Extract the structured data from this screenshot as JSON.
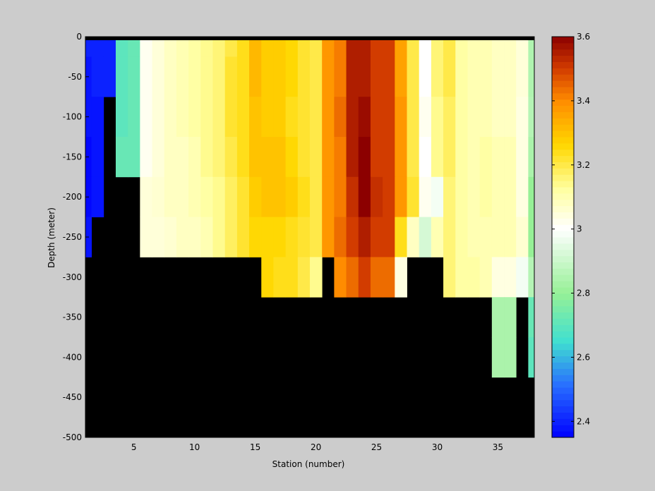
{
  "chart_data": {
    "type": "heatmap",
    "title": "",
    "xlabel": "Station (number)",
    "ylabel": "Depth (meter)",
    "xlim": [
      1,
      38
    ],
    "ylim": [
      -500,
      0
    ],
    "x_ticks": [
      5,
      10,
      15,
      20,
      25,
      30,
      35
    ],
    "y_ticks": [
      0,
      -50,
      -100,
      -150,
      -200,
      -250,
      -300,
      -350,
      -400,
      -450,
      -500
    ],
    "colorbar": {
      "range": [
        2.35,
        3.6
      ],
      "ticks": [
        2.4,
        2.6,
        2.8,
        3,
        3.2,
        3.4,
        3.6
      ],
      "tick_labels": [
        "2.4",
        "2.6",
        "2.8",
        "3",
        "3.2",
        "3.4",
        "3.6"
      ],
      "colormap": "jet-with-white-center"
    },
    "no_data_color": "#000000",
    "background_color": "#cccccc",
    "stations": [
      1,
      2,
      3,
      4,
      5,
      6,
      7,
      8,
      9,
      10,
      11,
      12,
      13,
      14,
      15,
      16,
      17,
      18,
      19,
      20,
      21,
      22,
      23,
      24,
      25,
      26,
      27,
      28,
      29,
      30,
      31,
      32,
      33,
      34,
      35,
      36,
      37,
      38
    ],
    "depths": [
      -5,
      -50,
      -100,
      -150,
      -200,
      -250,
      -300,
      -350,
      -400,
      -450,
      -500
    ],
    "values": [
      [
        2.4,
        2.4,
        2.4,
        2.7,
        2.72,
        3.02,
        3.05,
        3.08,
        3.1,
        3.12,
        3.14,
        3.16,
        3.2,
        3.24,
        3.32,
        3.28,
        3.28,
        3.26,
        3.22,
        3.2,
        3.38,
        3.42,
        3.55,
        3.55,
        3.5,
        3.5,
        3.36,
        3.2,
        3.0,
        3.16,
        3.2,
        3.12,
        3.1,
        3.1,
        3.08,
        3.08,
        3.05,
        2.85
      ],
      [
        2.38,
        2.4,
        2.4,
        2.7,
        2.72,
        3.02,
        3.05,
        3.08,
        3.1,
        3.12,
        3.14,
        3.16,
        3.22,
        3.24,
        3.32,
        3.28,
        3.28,
        3.26,
        3.22,
        3.2,
        3.38,
        3.42,
        3.55,
        3.55,
        3.5,
        3.5,
        3.36,
        3.2,
        3.0,
        3.16,
        3.2,
        3.12,
        3.1,
        3.1,
        3.08,
        3.08,
        3.05,
        2.85
      ],
      [
        2.38,
        2.38,
        null,
        2.7,
        2.72,
        3.02,
        3.05,
        3.08,
        3.1,
        3.12,
        3.14,
        3.16,
        3.22,
        3.24,
        3.3,
        3.28,
        3.28,
        3.24,
        3.22,
        3.2,
        3.38,
        3.44,
        3.55,
        3.58,
        3.5,
        3.5,
        3.38,
        3.2,
        3.02,
        3.14,
        3.18,
        3.12,
        3.1,
        3.1,
        3.08,
        3.08,
        3.04,
        2.86
      ],
      [
        2.36,
        2.38,
        null,
        2.72,
        2.72,
        3.02,
        3.05,
        3.08,
        3.08,
        3.1,
        3.14,
        3.16,
        3.2,
        3.24,
        3.3,
        3.3,
        3.3,
        3.26,
        3.22,
        3.2,
        3.38,
        3.42,
        3.55,
        3.6,
        3.5,
        3.5,
        3.38,
        3.2,
        3.0,
        3.14,
        3.18,
        3.12,
        3.1,
        3.12,
        3.1,
        3.1,
        3.04,
        2.84
      ],
      [
        2.36,
        2.38,
        null,
        null,
        null,
        3.05,
        3.06,
        3.08,
        3.08,
        3.1,
        3.12,
        3.14,
        3.18,
        3.22,
        3.28,
        3.3,
        3.3,
        3.28,
        3.24,
        3.2,
        3.38,
        3.42,
        3.52,
        3.6,
        3.52,
        3.5,
        3.38,
        3.22,
        3.02,
        2.98,
        3.16,
        3.12,
        3.1,
        3.12,
        3.1,
        3.1,
        3.04,
        2.8
      ],
      [
        2.38,
        null,
        null,
        null,
        null,
        3.05,
        3.05,
        3.06,
        3.08,
        3.08,
        3.1,
        3.14,
        3.18,
        3.22,
        3.26,
        3.26,
        3.26,
        3.24,
        3.22,
        3.2,
        3.38,
        3.44,
        3.5,
        3.55,
        3.5,
        3.5,
        3.24,
        3.08,
        2.92,
        3.1,
        3.16,
        3.12,
        3.1,
        3.1,
        3.1,
        3.1,
        3.06,
        2.8
      ],
      [
        null,
        null,
        null,
        null,
        null,
        null,
        null,
        null,
        null,
        null,
        null,
        null,
        null,
        null,
        null,
        3.26,
        3.24,
        3.24,
        3.2,
        3.14,
        null,
        3.4,
        3.44,
        3.5,
        3.44,
        3.44,
        3.04,
        null,
        null,
        null,
        3.16,
        3.12,
        3.12,
        3.1,
        3.04,
        3.04,
        2.98,
        2.86
      ],
      [
        null,
        null,
        null,
        null,
        null,
        null,
        null,
        null,
        null,
        null,
        null,
        null,
        null,
        null,
        null,
        null,
        null,
        null,
        null,
        null,
        null,
        null,
        null,
        null,
        null,
        null,
        null,
        null,
        null,
        null,
        null,
        null,
        null,
        null,
        2.84,
        2.84,
        null,
        2.72
      ],
      [
        null,
        null,
        null,
        null,
        null,
        null,
        null,
        null,
        null,
        null,
        null,
        null,
        null,
        null,
        null,
        null,
        null,
        null,
        null,
        null,
        null,
        null,
        null,
        null,
        null,
        null,
        null,
        null,
        null,
        null,
        null,
        null,
        null,
        null,
        2.84,
        2.84,
        null,
        2.7
      ],
      [
        null,
        null,
        null,
        null,
        null,
        null,
        null,
        null,
        null,
        null,
        null,
        null,
        null,
        null,
        null,
        null,
        null,
        null,
        null,
        null,
        null,
        null,
        null,
        null,
        null,
        null,
        null,
        null,
        null,
        null,
        null,
        null,
        null,
        null,
        null,
        null,
        null,
        null
      ],
      [
        null,
        null,
        null,
        null,
        null,
        null,
        null,
        null,
        null,
        null,
        null,
        null,
        null,
        null,
        null,
        null,
        null,
        null,
        null,
        null,
        null,
        null,
        null,
        null,
        null,
        null,
        null,
        null,
        null,
        null,
        null,
        null,
        null,
        null,
        null,
        null,
        null,
        null
      ]
    ]
  }
}
